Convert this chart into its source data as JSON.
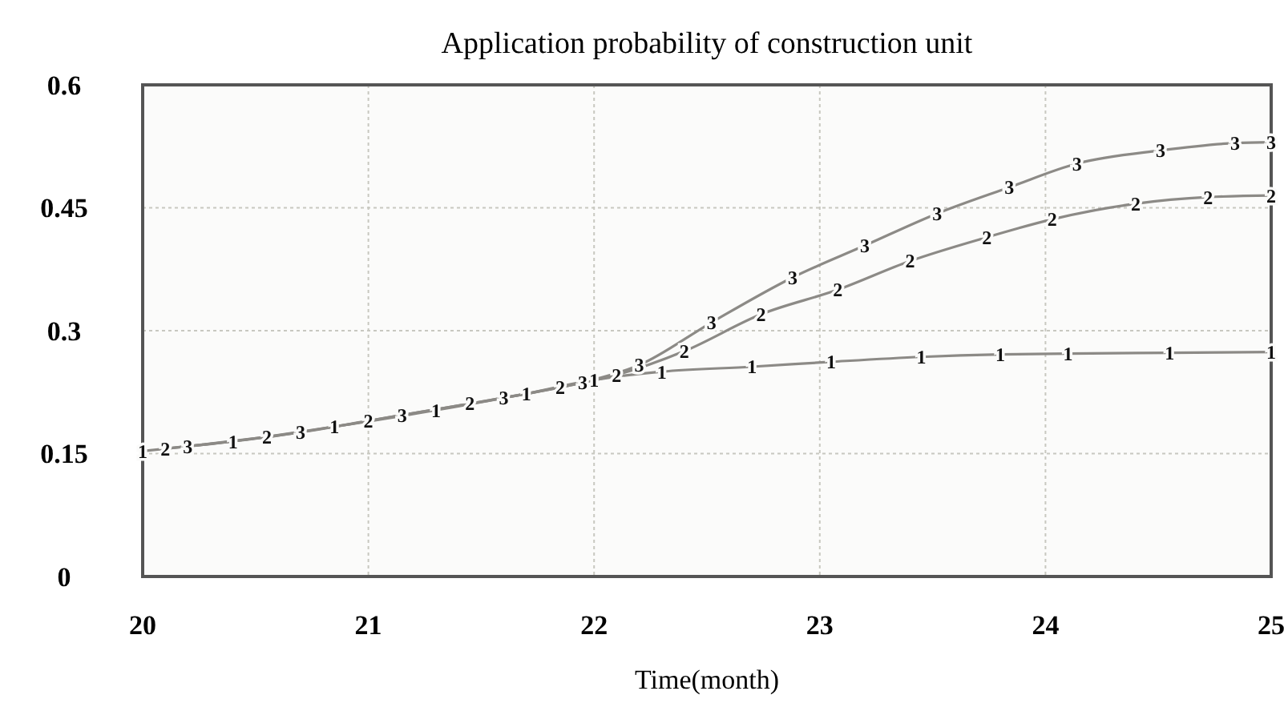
{
  "chart_data": {
    "type": "line",
    "title": "Application probability of construction unit",
    "xlabel": "Time(month)",
    "xlim": [
      20,
      25
    ],
    "xticks": [
      20,
      21,
      22,
      23,
      24,
      25
    ],
    "ylim": [
      0,
      0.6
    ],
    "yticks": [
      0,
      0.15,
      0.3,
      0.45,
      0.6
    ],
    "grid": true,
    "series": [
      {
        "name": "1",
        "color": "#8c8a86",
        "x": [
          20,
          20.4,
          20.85,
          21.3,
          21.7,
          22.0,
          22.3,
          22.7,
          23.05,
          23.45,
          23.8,
          24.1,
          24.55,
          25
        ],
        "values": [
          0.153,
          0.165,
          0.183,
          0.203,
          0.223,
          0.24,
          0.25,
          0.256,
          0.262,
          0.268,
          0.271,
          0.272,
          0.273,
          0.274
        ]
      },
      {
        "name": "2",
        "color": "#8c8a86",
        "x": [
          20.1,
          20.55,
          21.0,
          21.45,
          21.85,
          22.1,
          22.4,
          22.74,
          23.08,
          23.4,
          23.74,
          24.03,
          24.4,
          24.72,
          25
        ],
        "values": [
          0.156,
          0.17,
          0.19,
          0.211,
          0.231,
          0.246,
          0.275,
          0.32,
          0.35,
          0.385,
          0.414,
          0.436,
          0.455,
          0.463,
          0.465
        ]
      },
      {
        "name": "3",
        "color": "#8c8a86",
        "x": [
          20.2,
          20.7,
          21.15,
          21.6,
          21.95,
          22.2,
          22.52,
          22.88,
          23.2,
          23.52,
          23.84,
          24.14,
          24.51,
          24.84,
          25
        ],
        "values": [
          0.159,
          0.176,
          0.197,
          0.218,
          0.237,
          0.258,
          0.31,
          0.365,
          0.404,
          0.443,
          0.475,
          0.504,
          0.52,
          0.529,
          0.53
        ]
      }
    ]
  }
}
